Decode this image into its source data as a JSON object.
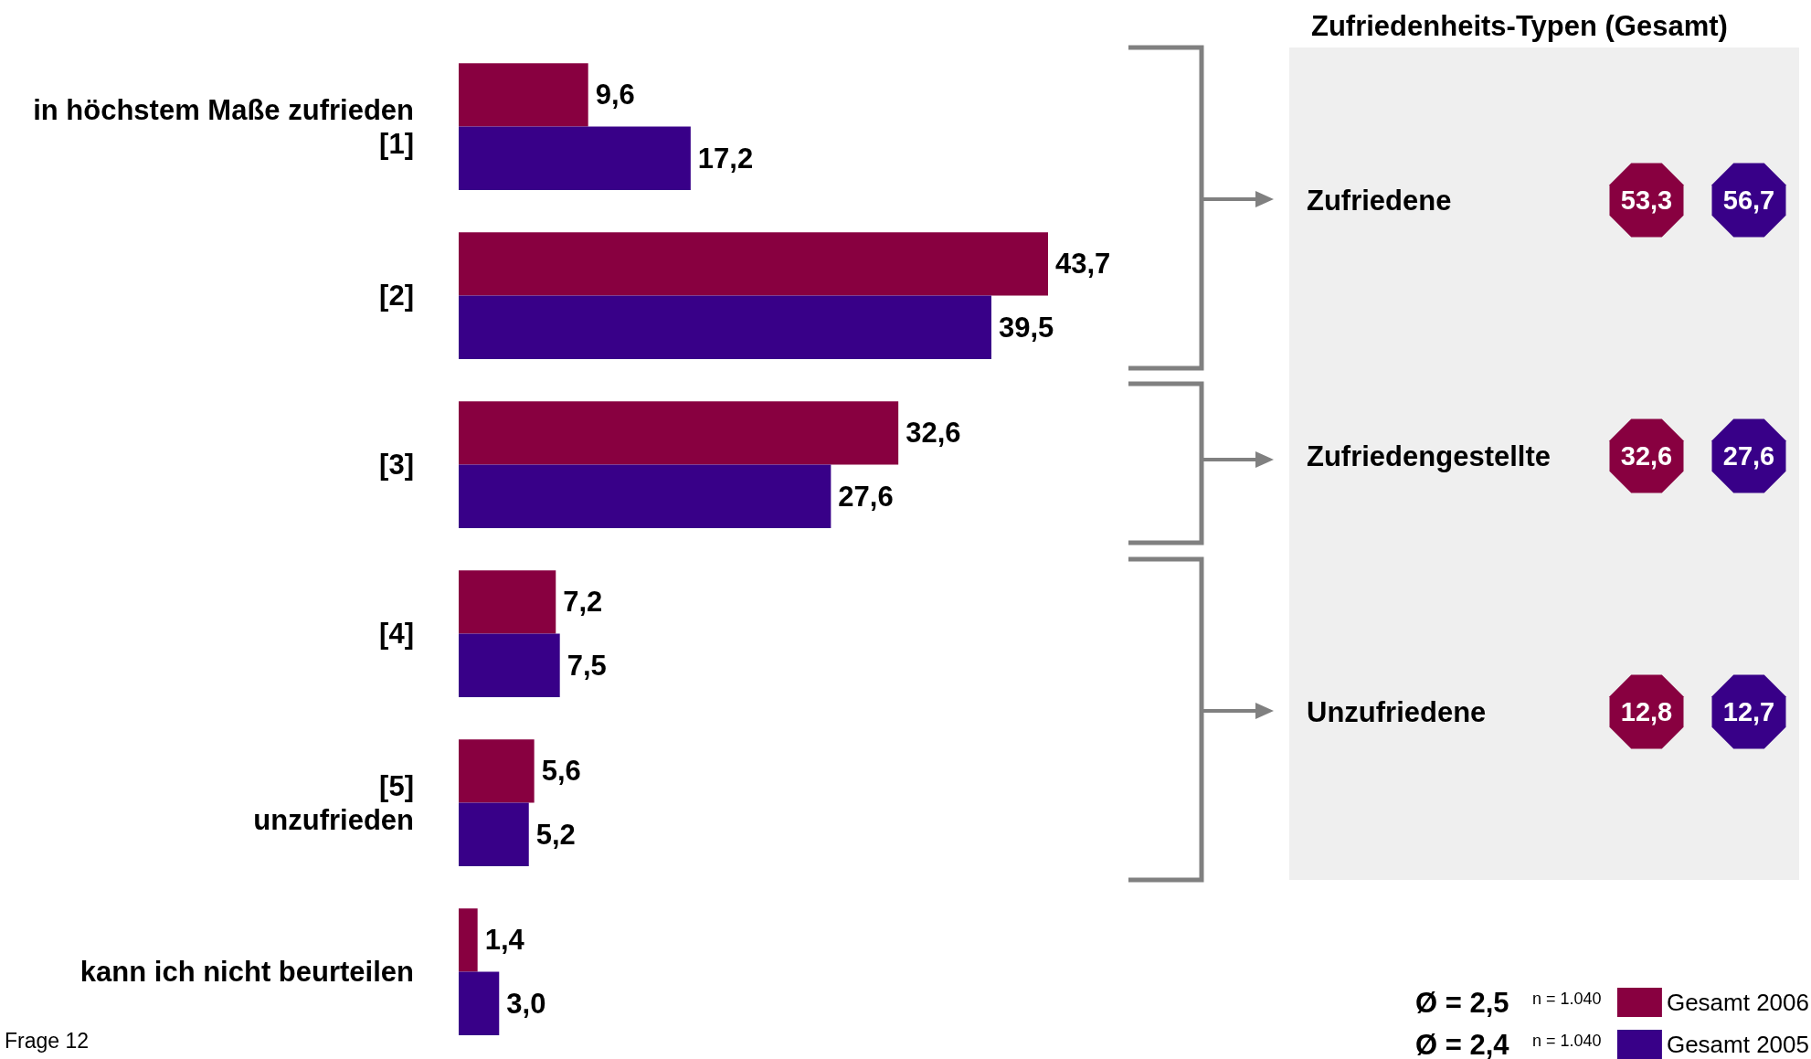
{
  "chart_data": [
    {
      "type": "bar",
      "orientation": "horizontal",
      "categories": [
        "in höchstem Maße zufrieden\n[1]",
        "[2]",
        "[3]",
        "[4]",
        "[5]\nunzufrieden",
        "kann ich nicht beurteilen"
      ],
      "series": [
        {
          "name": "Gesamt 2006",
          "color": "#880040",
          "values": [
            9.6,
            43.7,
            32.6,
            7.2,
            5.6,
            1.4
          ],
          "value_labels": [
            "9,6",
            "43,7",
            "32,6",
            "7,2",
            "5,6",
            "1,4"
          ]
        },
        {
          "name": "Gesamt 2005",
          "color": "#380088",
          "values": [
            17.2,
            39.5,
            27.6,
            7.5,
            5.2,
            3.0
          ],
          "value_labels": [
            "17,2",
            "39,5",
            "27,6",
            "7,5",
            "5,2",
            "3,0"
          ]
        }
      ],
      "legend": "bottom right",
      "tick_labels": "y",
      "annotations": [
        "Frage 12",
        "Ø = 2,5",
        "n = 1.040",
        "Ø = 2,4",
        "n = 1.040"
      ]
    },
    {
      "type": "other",
      "title": "Zufriedenheits-Typen (Gesamt)",
      "categories": [
        "Zufriedene",
        "Zufriedengestellte",
        "Unzufriedene"
      ],
      "series": [
        {
          "color": "#880040",
          "values": [
            53.3,
            32.6,
            12.8
          ],
          "value_labels": [
            "53,3",
            "32,6",
            "12,8"
          ]
        },
        {
          "color": "#380088",
          "values": [
            56.7,
            27.6,
            12.7
          ],
          "value_labels": [
            "56,7",
            "27,6",
            "12,7"
          ]
        }
      ]
    }
  ]
}
